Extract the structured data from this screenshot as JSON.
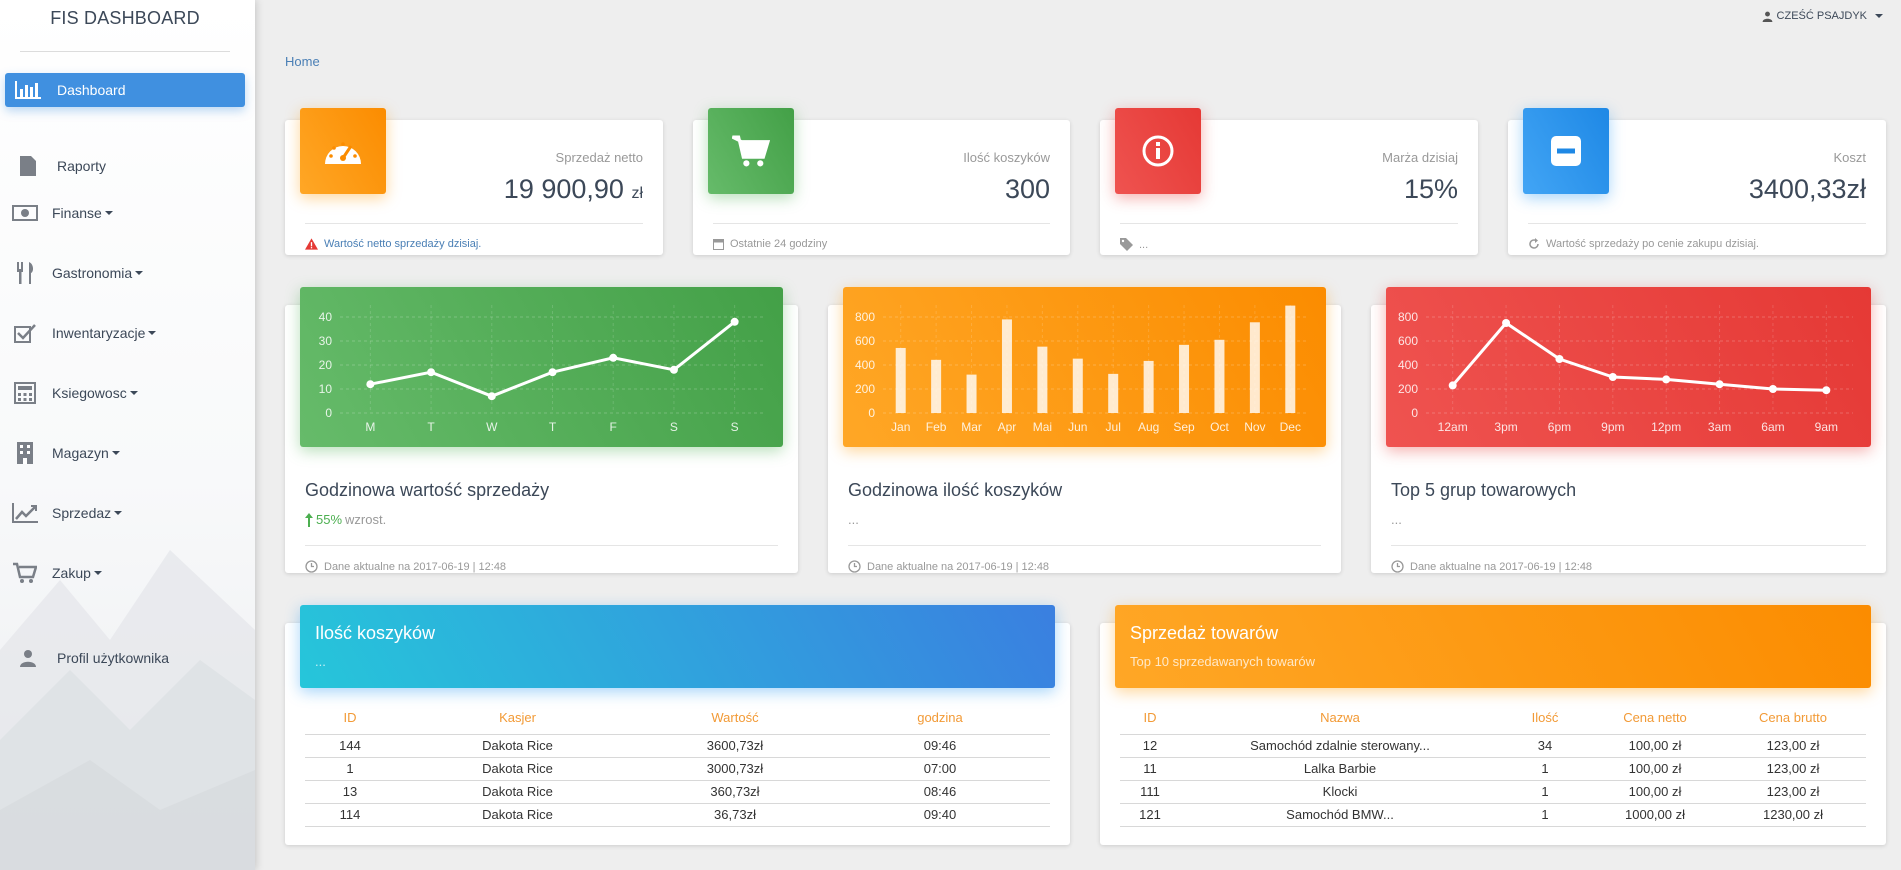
{
  "sidebar": {
    "brand": "FIS DASHBOARD",
    "items": [
      {
        "label": "Dashboard",
        "icon": "bar-chart-icon",
        "active": true,
        "dropdown": false
      },
      {
        "label": "Raporty",
        "icon": "document-icon",
        "dropdown": false
      },
      {
        "label": "Finanse",
        "icon": "money-icon",
        "dropdown": true
      },
      {
        "label": "Gastronomia",
        "icon": "cutlery-icon",
        "dropdown": true
      },
      {
        "label": "Inwentaryzacje",
        "icon": "checkbox-icon",
        "dropdown": true
      },
      {
        "label": "Ksiegowosc",
        "icon": "calculator-icon",
        "dropdown": true
      },
      {
        "label": "Magazyn",
        "icon": "building-icon",
        "dropdown": true
      },
      {
        "label": "Sprzedaz",
        "icon": "trend-icon",
        "dropdown": true
      },
      {
        "label": "Zakup",
        "icon": "cart-icon",
        "dropdown": true
      },
      {
        "label": "Profil użytkownika",
        "icon": "user-icon",
        "dropdown": false
      }
    ]
  },
  "topbar": {
    "user": "CZEŚĆ PSAJDYK"
  },
  "breadcrumb": "Home",
  "stats": [
    {
      "category": "Sprzedaż netto",
      "value": "19 900,90",
      "unit": "zł",
      "footer": "Wartość netto sprzedaży dzisiaj.",
      "color": "#ff9800",
      "icon": "speedometer-icon",
      "footer_icon": "warning-icon"
    },
    {
      "category": "Ilość koszyków",
      "value": "300",
      "unit": "",
      "footer": "Ostatnie 24 godziny",
      "color": "#4caf50",
      "icon": "cart-icon",
      "footer_icon": "calendar-icon"
    },
    {
      "category": "Marża dzisiaj",
      "value": "15%",
      "unit": "",
      "footer": "...",
      "color": "#e53935",
      "icon": "info-icon",
      "footer_icon": "tag-icon"
    },
    {
      "category": "Koszt",
      "value": "3400,33zł",
      "unit": "",
      "footer": "Wartość sprzedaży po cenie zakupu dzisiaj.",
      "color": "#2196f3",
      "icon": "minus-icon",
      "footer_icon": "refresh-icon"
    }
  ],
  "charts": [
    {
      "title": "Godzinowa wartość sprzedaży",
      "sub_highlight": "55%",
      "sub_text": "wzrost.",
      "footer": "Dane aktualne na 2017-06-19 | 12:48",
      "color": "#4caf50"
    },
    {
      "title": "Godzinowa ilość koszyków",
      "sub_highlight": "",
      "sub_text": "...",
      "footer": "Dane aktualne na 2017-06-19 | 12:48",
      "color": "#ff9800"
    },
    {
      "title": "Top 5 grup towarowych",
      "sub_highlight": "",
      "sub_text": "...",
      "footer": "Dane aktualne na 2017-06-19 | 12:48",
      "color": "#e53935"
    }
  ],
  "chart_data": [
    {
      "type": "line",
      "categories": [
        "M",
        "T",
        "W",
        "T",
        "F",
        "S",
        "S"
      ],
      "values": [
        12,
        17,
        7,
        17,
        23,
        18,
        38
      ],
      "yticks": [
        0,
        10,
        20,
        30,
        40
      ],
      "ylim": [
        0,
        45
      ],
      "title": "",
      "xlabel": "",
      "ylabel": ""
    },
    {
      "type": "bar",
      "categories": [
        "Jan",
        "Feb",
        "Mar",
        "Apr",
        "Mai",
        "Jun",
        "Jul",
        "Aug",
        "Sep",
        "Oct",
        "Nov",
        "Dec"
      ],
      "values": [
        542,
        443,
        320,
        780,
        553,
        453,
        326,
        434,
        568,
        610,
        756,
        895
      ],
      "yticks": [
        0,
        200,
        400,
        600,
        800
      ],
      "ylim": [
        0,
        900
      ],
      "title": "",
      "xlabel": "",
      "ylabel": ""
    },
    {
      "type": "line",
      "categories": [
        "12am",
        "3pm",
        "6pm",
        "9pm",
        "12pm",
        "3am",
        "6am",
        "9am"
      ],
      "values": [
        230,
        750,
        450,
        300,
        280,
        240,
        200,
        190
      ],
      "yticks": [
        0,
        200,
        400,
        600,
        800
      ],
      "ylim": [
        0,
        900
      ],
      "title": "",
      "xlabel": "",
      "ylabel": ""
    }
  ],
  "tables": [
    {
      "title": "Ilość koszyków",
      "subtitle": "...",
      "columns": [
        "ID",
        "Kasjer",
        "Wartość",
        "godzina"
      ],
      "rows": [
        [
          "144",
          "Dakota Rice",
          "3600,73zł",
          "09:46"
        ],
        [
          "1",
          "Dakota Rice",
          "3000,73zł",
          "07:00"
        ],
        [
          "13",
          "Dakota Rice",
          "360,73zł",
          "08:46"
        ],
        [
          "114",
          "Dakota Rice",
          "36,73zł",
          "09:40"
        ]
      ]
    },
    {
      "title": "Sprzedaż towarów",
      "subtitle": "Top 10 sprzedawanych towarów",
      "columns": [
        "ID",
        "Nazwa",
        "Ilość",
        "Cena netto",
        "Cena brutto"
      ],
      "rows": [
        [
          "12",
          "Samochód zdalnie sterowany...",
          "34",
          "100,00 zł",
          "123,00 zł"
        ],
        [
          "11",
          "Lalka Barbie",
          "1",
          "100,00 zł",
          "123,00 zł"
        ],
        [
          "111",
          "Klocki",
          "1",
          "100,00 zł",
          "123,00 zł"
        ],
        [
          "121",
          "Samochód BMW...",
          "1",
          "1000,00 zł",
          "1230,00 zł"
        ]
      ]
    }
  ]
}
